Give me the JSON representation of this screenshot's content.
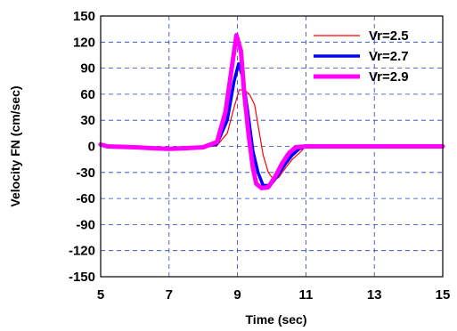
{
  "chart_data": {
    "type": "line",
    "title": "",
    "xlabel": "Time (sec)",
    "ylabel": "Velocity FN (cm/sec)",
    "xlim": [
      5,
      15
    ],
    "ylim": [
      -150,
      150
    ],
    "x_ticks": [
      5,
      7,
      9,
      11,
      13,
      15
    ],
    "y_ticks": [
      150,
      120,
      90,
      60,
      30,
      0,
      -30,
      -60,
      -90,
      -120,
      -150
    ],
    "grid": "dashed",
    "legend_position": "top-right",
    "series": [
      {
        "name": "Vr=2.5",
        "color": "#ff0000",
        "points": [
          [
            5,
            2
          ],
          [
            5.2,
            0
          ],
          [
            6,
            -1
          ],
          [
            6.5,
            -2
          ],
          [
            7,
            -3
          ],
          [
            7.5,
            -2
          ],
          [
            8,
            -1
          ],
          [
            8.4,
            1
          ],
          [
            8.7,
            15
          ],
          [
            8.9,
            45
          ],
          [
            9.05,
            65
          ],
          [
            9.2,
            65
          ],
          [
            9.35,
            60
          ],
          [
            9.5,
            48
          ],
          [
            9.6,
            25
          ],
          [
            9.75,
            -10
          ],
          [
            9.9,
            -30
          ],
          [
            10.05,
            -38
          ],
          [
            10.2,
            -36
          ],
          [
            10.4,
            -25
          ],
          [
            10.6,
            -15
          ],
          [
            10.8,
            -8
          ],
          [
            11,
            0
          ],
          [
            15,
            0
          ]
        ]
      },
      {
        "name": "Vr=2.7",
        "color": "#0000ff",
        "points": [
          [
            5,
            2
          ],
          [
            5.2,
            0
          ],
          [
            6,
            -1
          ],
          [
            6.5,
            -2
          ],
          [
            7,
            -3
          ],
          [
            7.5,
            -2
          ],
          [
            8,
            -1
          ],
          [
            8.4,
            3
          ],
          [
            8.7,
            30
          ],
          [
            8.9,
            75
          ],
          [
            9.03,
            95
          ],
          [
            9.15,
            80
          ],
          [
            9.3,
            40
          ],
          [
            9.45,
            -5
          ],
          [
            9.6,
            -30
          ],
          [
            9.75,
            -45
          ],
          [
            9.95,
            -45
          ],
          [
            10.15,
            -35
          ],
          [
            10.4,
            -20
          ],
          [
            10.6,
            -10
          ],
          [
            10.8,
            -3
          ],
          [
            11,
            0
          ],
          [
            15,
            0
          ]
        ]
      },
      {
        "name": "Vr=2.9",
        "color": "#ff00ff",
        "points": [
          [
            5,
            2
          ],
          [
            5.2,
            0
          ],
          [
            6,
            -1
          ],
          [
            6.5,
            -2
          ],
          [
            7,
            -3
          ],
          [
            7.5,
            -2
          ],
          [
            8,
            -1
          ],
          [
            8.4,
            5
          ],
          [
            8.65,
            40
          ],
          [
            8.85,
            95
          ],
          [
            8.97,
            128
          ],
          [
            9.1,
            110
          ],
          [
            9.2,
            60
          ],
          [
            9.32,
            15
          ],
          [
            9.45,
            -25
          ],
          [
            9.55,
            -43
          ],
          [
            9.7,
            -48
          ],
          [
            9.9,
            -47
          ],
          [
            10.1,
            -35
          ],
          [
            10.3,
            -20
          ],
          [
            10.5,
            -8
          ],
          [
            10.7,
            -1
          ],
          [
            11,
            0
          ],
          [
            15,
            0
          ]
        ]
      }
    ]
  }
}
